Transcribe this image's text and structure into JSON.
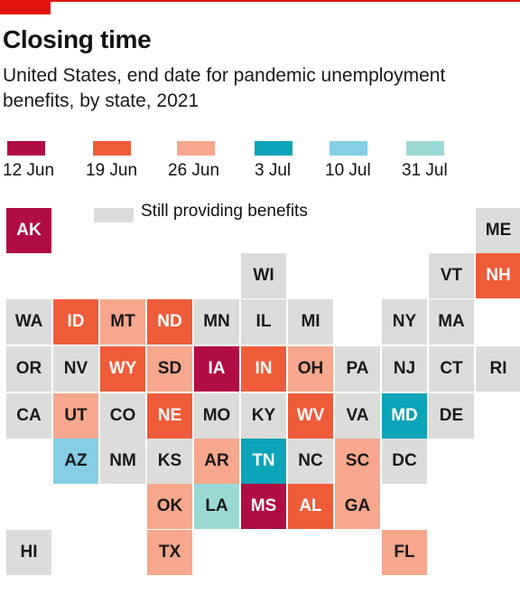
{
  "title": "Closing time",
  "subtitle": "United States, end date for pandemic unemployment benefits, by state, 2021",
  "colors": {
    "12 Jun": "#b00d46",
    "19 Jun": "#ef5c3a",
    "26 Jun": "#f6a78d",
    "3 Jul": "#0ba4b8",
    "10 Jul": "#84cde4",
    "31 Jul": "#9ad8d6",
    "still": "#dcdcda"
  },
  "legend": {
    "dates": [
      "12 Jun",
      "19 Jun",
      "26 Jun",
      "3 Jul",
      "10 Jul",
      "31 Jul"
    ],
    "still_label": "Still providing benefits"
  },
  "states": [
    {
      "code": "AK",
      "end": "12 Jun",
      "col": 0,
      "row": 0
    },
    {
      "code": "ME",
      "end": "still",
      "col": 10,
      "row": 0
    },
    {
      "code": "WI",
      "end": "still",
      "col": 5,
      "row": 1
    },
    {
      "code": "VT",
      "end": "still",
      "col": 9,
      "row": 1
    },
    {
      "code": "NH",
      "end": "19 Jun",
      "col": 10,
      "row": 1
    },
    {
      "code": "WA",
      "end": "still",
      "col": 0,
      "row": 2
    },
    {
      "code": "ID",
      "end": "19 Jun",
      "col": 1,
      "row": 2
    },
    {
      "code": "MT",
      "end": "26 Jun",
      "col": 2,
      "row": 2
    },
    {
      "code": "ND",
      "end": "19 Jun",
      "col": 3,
      "row": 2
    },
    {
      "code": "MN",
      "end": "still",
      "col": 4,
      "row": 2
    },
    {
      "code": "IL",
      "end": "still",
      "col": 5,
      "row": 2
    },
    {
      "code": "MI",
      "end": "still",
      "col": 6,
      "row": 2
    },
    {
      "code": "NY",
      "end": "still",
      "col": 8,
      "row": 2
    },
    {
      "code": "MA",
      "end": "still",
      "col": 9,
      "row": 2
    },
    {
      "code": "OR",
      "end": "still",
      "col": 0,
      "row": 3
    },
    {
      "code": "NV",
      "end": "still",
      "col": 1,
      "row": 3
    },
    {
      "code": "WY",
      "end": "19 Jun",
      "col": 2,
      "row": 3
    },
    {
      "code": "SD",
      "end": "26 Jun",
      "col": 3,
      "row": 3
    },
    {
      "code": "IA",
      "end": "12 Jun",
      "col": 4,
      "row": 3
    },
    {
      "code": "IN",
      "end": "19 Jun",
      "col": 5,
      "row": 3
    },
    {
      "code": "OH",
      "end": "26 Jun",
      "col": 6,
      "row": 3
    },
    {
      "code": "PA",
      "end": "still",
      "col": 7,
      "row": 3
    },
    {
      "code": "NJ",
      "end": "still",
      "col": 8,
      "row": 3
    },
    {
      "code": "CT",
      "end": "still",
      "col": 9,
      "row": 3
    },
    {
      "code": "RI",
      "end": "still",
      "col": 10,
      "row": 3
    },
    {
      "code": "CA",
      "end": "still",
      "col": 0,
      "row": 4
    },
    {
      "code": "UT",
      "end": "26 Jun",
      "col": 1,
      "row": 4
    },
    {
      "code": "CO",
      "end": "still",
      "col": 2,
      "row": 4
    },
    {
      "code": "NE",
      "end": "19 Jun",
      "col": 3,
      "row": 4
    },
    {
      "code": "MO",
      "end": "still",
      "col": 4,
      "row": 4
    },
    {
      "code": "KY",
      "end": "still",
      "col": 5,
      "row": 4
    },
    {
      "code": "WV",
      "end": "19 Jun",
      "col": 6,
      "row": 4
    },
    {
      "code": "VA",
      "end": "still",
      "col": 7,
      "row": 4
    },
    {
      "code": "MD",
      "end": "3 Jul",
      "col": 8,
      "row": 4
    },
    {
      "code": "DE",
      "end": "still",
      "col": 9,
      "row": 4
    },
    {
      "code": "AZ",
      "end": "10 Jul",
      "col": 1,
      "row": 5
    },
    {
      "code": "NM",
      "end": "still",
      "col": 2,
      "row": 5
    },
    {
      "code": "KS",
      "end": "still",
      "col": 3,
      "row": 5
    },
    {
      "code": "AR",
      "end": "26 Jun",
      "col": 4,
      "row": 5
    },
    {
      "code": "TN",
      "end": "3 Jul",
      "col": 5,
      "row": 5
    },
    {
      "code": "NC",
      "end": "still",
      "col": 6,
      "row": 5
    },
    {
      "code": "SC",
      "end": "26 Jun",
      "col": 7,
      "row": 5
    },
    {
      "code": "DC",
      "end": "still",
      "col": 8,
      "row": 5
    },
    {
      "code": "OK",
      "end": "26 Jun",
      "col": 3,
      "row": 6
    },
    {
      "code": "LA",
      "end": "31 Jul",
      "col": 4,
      "row": 6
    },
    {
      "code": "MS",
      "end": "12 Jun",
      "col": 5,
      "row": 6
    },
    {
      "code": "AL",
      "end": "19 Jun",
      "col": 6,
      "row": 6
    },
    {
      "code": "GA",
      "end": "26 Jun",
      "col": 7,
      "row": 6
    },
    {
      "code": "HI",
      "end": "still",
      "col": 0,
      "row": 7
    },
    {
      "code": "TX",
      "end": "26 Jun",
      "col": 3,
      "row": 7
    },
    {
      "code": "FL",
      "end": "26 Jun",
      "col": 8,
      "row": 7
    }
  ]
}
